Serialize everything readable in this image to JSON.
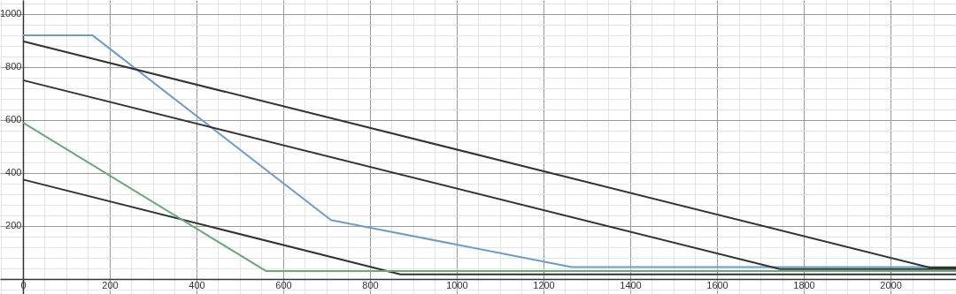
{
  "chart_data": {
    "type": "line",
    "xlim": [
      -53,
      2151
    ],
    "ylim": [
      -57,
      1053
    ],
    "xticks": [
      {
        "value": -50,
        "label": null
      },
      0,
      {
        "value": 50,
        "label": null
      },
      {
        "value": 100,
        "label": null
      },
      {
        "value": 150,
        "label": null
      },
      200,
      {
        "value": 250,
        "label": null
      },
      {
        "value": 300,
        "label": null
      },
      {
        "value": 350,
        "label": null
      },
      400,
      {
        "value": 450,
        "label": null
      },
      {
        "value": 500,
        "label": null
      },
      {
        "value": 550,
        "label": null
      },
      600,
      {
        "value": 650,
        "label": null
      },
      {
        "value": 700,
        "label": null
      },
      {
        "value": 750,
        "label": null
      },
      800,
      {
        "value": 850,
        "label": null
      },
      {
        "value": 900,
        "label": null
      },
      {
        "value": 950,
        "label": null
      },
      1000,
      {
        "value": 1050,
        "label": null
      },
      {
        "value": 1100,
        "label": null
      },
      {
        "value": 1150,
        "label": null
      },
      1200,
      {
        "value": 1250,
        "label": null
      },
      {
        "value": 1300,
        "label": null
      },
      {
        "value": 1350,
        "label": null
      },
      1400,
      {
        "value": 1450,
        "label": null
      },
      {
        "value": 1500,
        "label": null
      },
      {
        "value": 1550,
        "label": null
      },
      1600,
      {
        "value": 1650,
        "label": null
      },
      {
        "value": 1700,
        "label": null
      },
      {
        "value": 1750,
        "label": null
      },
      1800,
      {
        "value": 1850,
        "label": null
      },
      {
        "value": 1900,
        "label": null
      },
      {
        "value": 1950,
        "label": null
      },
      2000,
      {
        "value": 2050,
        "label": null
      },
      {
        "value": 2100,
        "label": null
      },
      {
        "value": 2150,
        "label": null
      }
    ],
    "yticks": [
      {
        "value": -40,
        "label": null
      },
      {
        "value": 0,
        "label": null
      },
      {
        "value": 40,
        "label": null
      },
      {
        "value": 80,
        "label": null
      },
      {
        "value": 120,
        "label": null
      },
      {
        "value": 160,
        "label": null
      },
      200,
      {
        "value": 240,
        "label": null
      },
      {
        "value": 280,
        "label": null
      },
      {
        "value": 320,
        "label": null
      },
      {
        "value": 360,
        "label": null
      },
      400,
      {
        "value": 440,
        "label": null
      },
      {
        "value": 480,
        "label": null
      },
      {
        "value": 520,
        "label": null
      },
      {
        "value": 560,
        "label": null
      },
      600,
      {
        "value": 640,
        "label": null
      },
      {
        "value": 680,
        "label": null
      },
      {
        "value": 720,
        "label": null
      },
      {
        "value": 760,
        "label": null
      },
      800,
      {
        "value": 840,
        "label": null
      },
      {
        "value": 880,
        "label": null
      },
      {
        "value": 920,
        "label": null
      },
      {
        "value": 960,
        "label": null
      },
      1000,
      {
        "value": 1040,
        "label": null
      }
    ],
    "grid": true,
    "line_style": "solid",
    "marker": "none",
    "series": [
      {
        "color": "#6c9bd2",
        "x": [
          0,
          160,
          710,
          1265,
          2151
        ],
        "values": [
          920,
          920,
          222,
          45,
          45
        ]
      },
      {
        "color": "#333333",
        "x": [
          0,
          2090,
          2151
        ],
        "values": [
          897,
          43,
          43
        ]
      },
      {
        "color": "#333333",
        "x": [
          0,
          1745,
          2151
        ],
        "values": [
          750,
          37,
          37
        ]
      },
      {
        "color": "#333333",
        "x": [
          0,
          870,
          2151
        ],
        "values": [
          375,
          17,
          17
        ]
      },
      {
        "color": "#6aaa78",
        "x": [
          0,
          560,
          2151
        ],
        "values": [
          590,
          30,
          30
        ]
      }
    ]
  }
}
